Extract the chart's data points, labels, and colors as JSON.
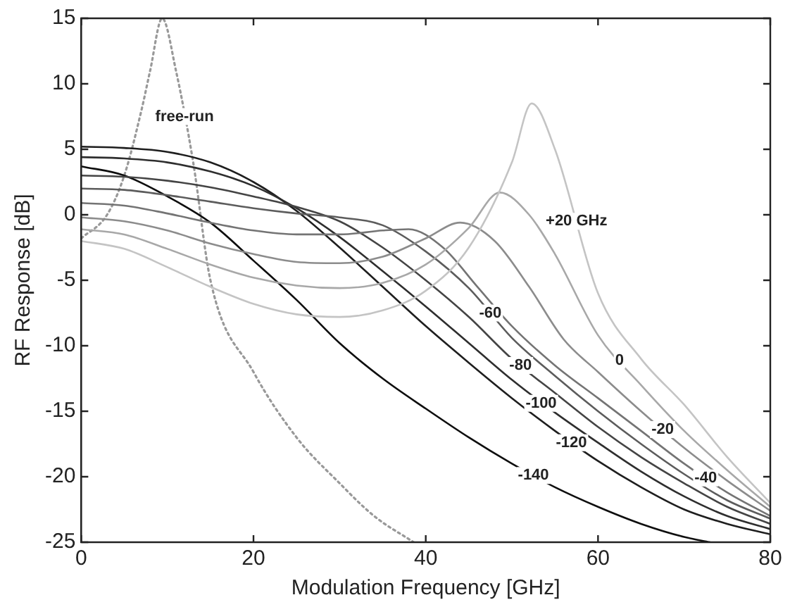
{
  "chart_data": {
    "type": "line",
    "xlabel": "Modulation Frequency [GHz]",
    "ylabel": "RF Response [dB]",
    "xlim": [
      0,
      80
    ],
    "xticks": [
      0,
      20,
      40,
      60,
      80
    ],
    "ylim": [
      -25,
      15
    ],
    "yticks": [
      -25,
      -20,
      -15,
      -10,
      -5,
      0,
      5,
      10,
      15
    ],
    "grid": false,
    "legend": false,
    "marker": "none",
    "series": [
      {
        "color": "#c4c4c4",
        "x": [
          0,
          5,
          10,
          15,
          20,
          25,
          30,
          35,
          40,
          45,
          50,
          52.3,
          55,
          60,
          65,
          70,
          75,
          80
        ],
        "values": [
          -2,
          -2.6,
          -4,
          -5.5,
          -6.8,
          -7.6,
          -7.8,
          -7.3,
          -5.8,
          -2.5,
          4,
          8.5,
          5,
          -6,
          -11,
          -14.5,
          -18.5,
          -22
        ]
      },
      {
        "color": "#a8a8a8",
        "x": [
          0,
          5,
          10,
          15,
          20,
          25,
          30,
          35,
          40,
          45,
          48.6,
          52,
          55,
          60,
          65,
          70,
          75,
          80
        ],
        "values": [
          -1.1,
          -1.5,
          -2.6,
          -3.8,
          -4.8,
          -5.4,
          -5.6,
          -5.2,
          -3.8,
          -1,
          1.7,
          0,
          -3,
          -9.2,
          -13,
          -16.5,
          -19.5,
          -22.3
        ]
      },
      {
        "color": "#8c8c8c",
        "x": [
          0,
          5,
          10,
          15,
          20,
          25,
          30,
          35,
          40,
          44,
          48,
          52,
          56,
          60,
          65,
          70,
          75,
          80
        ],
        "values": [
          -0.2,
          -0.5,
          -1.2,
          -2.2,
          -3,
          -3.6,
          -3.7,
          -3.2,
          -1.8,
          -0.6,
          -2,
          -5.5,
          -9.5,
          -12,
          -15,
          -17.8,
          -20.3,
          -22.6
        ]
      },
      {
        "color": "#747474",
        "x": [
          0,
          5,
          10,
          15,
          20,
          25,
          30,
          35,
          38,
          42,
          46,
          50,
          55,
          60,
          65,
          70,
          75,
          80
        ],
        "values": [
          0.9,
          0.7,
          0.1,
          -0.6,
          -1.2,
          -1.5,
          -1.5,
          -1.2,
          -1.1,
          -2.5,
          -5.5,
          -8.5,
          -11.5,
          -14,
          -16.5,
          -19,
          -21.2,
          -23
        ]
      },
      {
        "color": "#5c5c5c",
        "x": [
          0,
          5,
          10,
          15,
          20,
          25,
          30,
          35,
          40,
          45,
          50,
          55,
          60,
          65,
          70,
          75,
          80
        ],
        "values": [
          2,
          1.9,
          1.5,
          1,
          0.5,
          0.1,
          -0.2,
          -0.8,
          -2.8,
          -5.6,
          -9.4,
          -12.3,
          -15,
          -17.5,
          -19.8,
          -21.8,
          -23.2
        ]
      },
      {
        "color": "#444444",
        "x": [
          0,
          5,
          10,
          15,
          20,
          25,
          30,
          35,
          40,
          45,
          50,
          55,
          60,
          65,
          70,
          75,
          80
        ],
        "values": [
          3,
          2.9,
          2.6,
          2.1,
          1.4,
          0.6,
          -0.5,
          -2.5,
          -5,
          -7.8,
          -11,
          -13.6,
          -16.2,
          -18.5,
          -20.5,
          -22.3,
          -23.6
        ]
      },
      {
        "color": "#2e2e2e",
        "x": [
          0,
          5,
          10,
          15,
          20,
          25,
          30,
          35,
          40,
          45,
          50,
          55,
          60,
          65,
          70,
          75,
          80
        ],
        "values": [
          4.4,
          4.3,
          4,
          3.3,
          2.2,
          0.5,
          -1.7,
          -4.3,
          -7,
          -9.8,
          -12.6,
          -15.1,
          -17.4,
          -19.6,
          -21.5,
          -23,
          -24
        ]
      },
      {
        "color": "#1e1e1e",
        "x": [
          0,
          5,
          10,
          15,
          20,
          25,
          30,
          35,
          40,
          45,
          50,
          55,
          60,
          65,
          70,
          75,
          80
        ],
        "values": [
          5.2,
          5.1,
          4.8,
          4,
          2.5,
          0.3,
          -2.5,
          -5.5,
          -8.5,
          -11.3,
          -14,
          -16.5,
          -18.8,
          -20.8,
          -22.5,
          -23.6,
          -24.4
        ]
      },
      {
        "color": "#0e0e0e",
        "x": [
          0,
          5,
          10,
          15,
          20,
          25,
          30,
          35,
          40,
          45,
          50,
          55,
          60,
          65,
          70,
          73
        ],
        "values": [
          3.7,
          3,
          1.4,
          -0.6,
          -3.5,
          -6.5,
          -9.8,
          -12.5,
          -14.8,
          -17,
          -19,
          -20.8,
          -22.3,
          -23.6,
          -24.6,
          -25
        ]
      },
      {
        "color": "#999999",
        "line_style": "dotted",
        "x": [
          0,
          3,
          5,
          7,
          8,
          9.4,
          11,
          13,
          15,
          20,
          25,
          30,
          34,
          38.6
        ],
        "values": [
          -1.8,
          0,
          3,
          8,
          11,
          15,
          11,
          4,
          -5,
          -12,
          -17,
          -20.5,
          -23,
          -25
        ]
      }
    ],
    "annotations": [
      {
        "text": "+20 GHz",
        "x": 57.5,
        "y": -0.5
      },
      {
        "text": "0",
        "x": 62.5,
        "y": -11.1
      },
      {
        "text": "-20",
        "x": 67.5,
        "y": -16.4
      },
      {
        "text": "-40",
        "x": 72.5,
        "y": -20.1
      },
      {
        "text": "-60",
        "x": 47.5,
        "y": -7.5
      },
      {
        "text": "-80",
        "x": 51,
        "y": -11.5
      },
      {
        "text": "-100",
        "x": 53.4,
        "y": -14.4
      },
      {
        "text": "-120",
        "x": 56.9,
        "y": -17.4
      },
      {
        "text": "-140",
        "x": 52.5,
        "y": -19.9
      },
      {
        "text": "free-run",
        "x": 12,
        "y": 7.5
      }
    ]
  }
}
